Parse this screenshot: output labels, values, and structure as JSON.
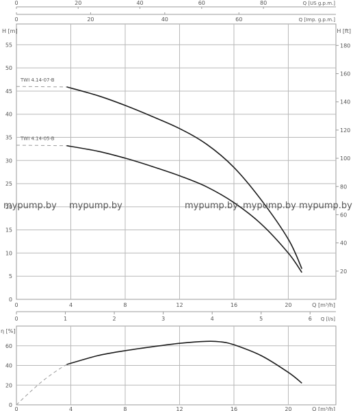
{
  "chart_data": [
    {
      "type": "line",
      "xlabel": "Q [m³/h]",
      "ylabel_left": "H [m]",
      "ylabel_right": "H [ft]",
      "xlim": [
        0,
        23.5
      ],
      "ylim": [
        0,
        59.5
      ],
      "x_ticks": [
        0,
        4,
        8,
        12,
        16,
        20
      ],
      "y_ticks_left": [
        0,
        5,
        10,
        15,
        20,
        25,
        30,
        35,
        40,
        45,
        50,
        55
      ],
      "y_ticks_right": [
        20,
        40,
        60,
        80,
        100,
        120,
        140,
        160,
        180
      ],
      "grid": true,
      "top_axes": [
        {
          "label": "Q [US g.p.m.]",
          "ticks": [
            0,
            20,
            40,
            60,
            80
          ]
        },
        {
          "label": "Q [Imp. g.p.m.]",
          "ticks": [
            0,
            20,
            40,
            60
          ]
        }
      ],
      "series": [
        {
          "name": "TWI 4.14-07-B",
          "color": "#1a1a1a",
          "x": [
            3.7,
            6,
            8,
            10,
            12,
            14,
            16,
            18,
            20,
            21
          ],
          "y": [
            45.9,
            44,
            41.9,
            39.5,
            36.9,
            33.5,
            28.5,
            21.5,
            13,
            6.6
          ],
          "dashed_extension": {
            "x": [
              0,
              3.7
            ],
            "y": [
              46,
              45.9
            ]
          }
        },
        {
          "name": "TWI 4.14-05-B",
          "color": "#1a1a1a",
          "x": [
            3.7,
            6,
            8,
            10,
            12,
            14,
            16,
            18,
            20,
            21
          ],
          "y": [
            33.2,
            32,
            30.5,
            28.7,
            26.7,
            24.3,
            20.9,
            16.3,
            10,
            5.8
          ],
          "dashed_extension": {
            "x": [
              0,
              3.7
            ],
            "y": [
              33.3,
              33.2
            ]
          }
        }
      ],
      "watermark": [
        "mypump.by",
        "mypump.by",
        "mypump.by",
        "mypump.by",
        "mypump.by"
      ]
    },
    {
      "type": "line",
      "xlabel": "Q [m³/h]",
      "ylabel": "η [%]",
      "xlim": [
        0,
        23.5
      ],
      "ylim": [
        0,
        80
      ],
      "x_ticks": [
        0,
        4,
        8,
        12,
        16,
        20
      ],
      "y_ticks": [
        0,
        20,
        40,
        60
      ],
      "grid": true,
      "top_axis": {
        "label": "Q [l/s]",
        "ticks": [
          0,
          1,
          2,
          3,
          4,
          5,
          6
        ]
      },
      "series": [
        {
          "name": "",
          "color": "#1a1a1a",
          "x": [
            3.7,
            6,
            8,
            10,
            12,
            14,
            15,
            16,
            18,
            20,
            21
          ],
          "y": [
            41,
            50,
            55,
            59,
            62.5,
            64.5,
            64,
            61,
            50,
            33,
            22
          ],
          "dashed_extension": {
            "x": [
              0,
              1,
              2,
              3,
              3.7
            ],
            "y": [
              0,
              13,
              25,
              35,
              41
            ]
          }
        }
      ]
    }
  ]
}
